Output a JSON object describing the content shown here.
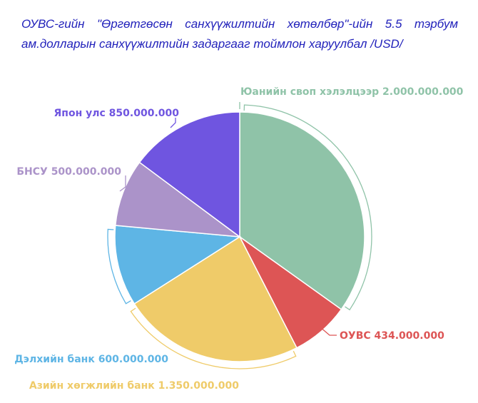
{
  "chart_data": {
    "type": "pie",
    "title": "ОУВС-гийн \"Өргөтгөсөн санхүүжилтийн хөтөлбөр\"-ийн 5.5 тэрбум ам.долларын санхүүжилтийн задаргааг тоймлон харуулбал /USD/",
    "slices": [
      {
        "name": "Юанийн своп хэлэлцээр",
        "value": 2000000000,
        "label": "Юанийн своп хэлэлцээр 2.000.000.000",
        "color": "#8fc3a8"
      },
      {
        "name": "ОУВС",
        "value": 434000000,
        "label": "ОУВС 434.000.000",
        "color": "#dd5555"
      },
      {
        "name": "Азийн хөгжлийн банк",
        "value": 1350000000,
        "label": "Азийн хөгжлийн банк 1.350.000.000",
        "color": "#efcb69"
      },
      {
        "name": "Дэлхийн банк",
        "value": 600000000,
        "label": "Дэлхийн банк 600.000.000",
        "color": "#5eb5e5"
      },
      {
        "name": "БНСУ",
        "value": 500000000,
        "label": "БНСУ 500.000.000",
        "color": "#ab93c9"
      },
      {
        "name": "Япон улс",
        "value": 850000000,
        "label": "Япон улс 850.000.000",
        "color": "#6f55e0"
      }
    ],
    "legend": "none"
  }
}
